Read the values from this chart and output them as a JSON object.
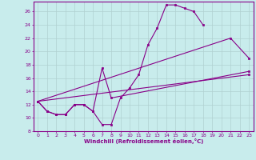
{
  "xlabel": "Windchill (Refroidissement éolien,°C)",
  "background_color": "#c8ecec",
  "grid_color": "#b0d0d0",
  "line_color": "#880088",
  "xlim": [
    -0.5,
    23.5
  ],
  "ylim": [
    8,
    27.5
  ],
  "xticks": [
    0,
    1,
    2,
    3,
    4,
    5,
    6,
    7,
    8,
    9,
    10,
    11,
    12,
    13,
    14,
    15,
    16,
    17,
    18,
    19,
    20,
    21,
    22,
    23
  ],
  "yticks": [
    8,
    10,
    12,
    14,
    16,
    18,
    20,
    22,
    24,
    26
  ],
  "line1_x": [
    0,
    1,
    2,
    3,
    4,
    5,
    6,
    7,
    8,
    9,
    10,
    11,
    12,
    13,
    14,
    15,
    16,
    17,
    18
  ],
  "line1_y": [
    12.5,
    11.0,
    10.5,
    10.5,
    12.0,
    12.0,
    11.0,
    9.0,
    9.0,
    13.0,
    14.5,
    16.5,
    21.0,
    23.5,
    27.0,
    27.0,
    26.5,
    26.0,
    24.0
  ],
  "line2_x": [
    0,
    1,
    2,
    3,
    4,
    5,
    6,
    7,
    8,
    23
  ],
  "line2_y": [
    12.5,
    11.0,
    10.5,
    10.5,
    12.0,
    12.0,
    11.0,
    17.5,
    13.0,
    17.0
  ],
  "line3_x": [
    0,
    23
  ],
  "line3_y": [
    12.5,
    16.5
  ],
  "line4_x": [
    0,
    21,
    23
  ],
  "line4_y": [
    12.5,
    22.0,
    19.0
  ]
}
